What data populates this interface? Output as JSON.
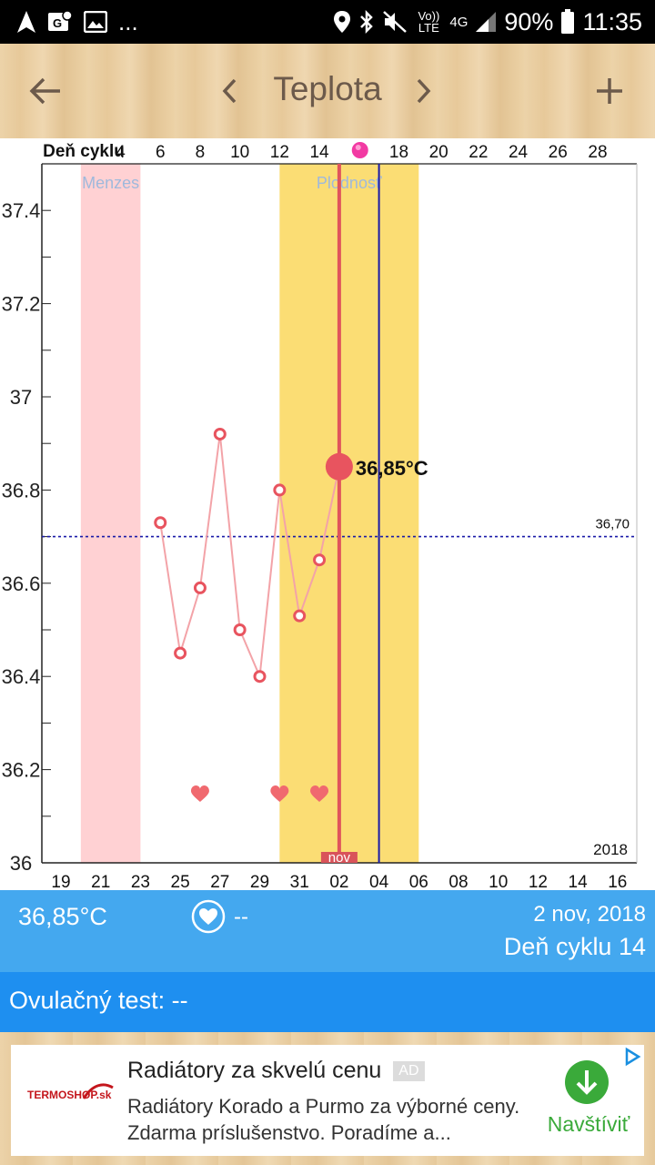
{
  "status_bar": {
    "dots": "...",
    "volte": "Vo)) LTE",
    "network": "4G",
    "battery": "90%",
    "time": "11:35"
  },
  "app_bar": {
    "title": "Teplota",
    "back_icon": "arrow-left-icon",
    "prev_icon": "chevron-left-icon",
    "next_icon": "chevron-right-icon",
    "add_icon": "plus-icon"
  },
  "chart_data": {
    "type": "line",
    "x_axis_top_label": "Deň cyklu",
    "cycle_day_ticks": [
      "4",
      "6",
      "8",
      "10",
      "12",
      "14",
      "18",
      "20",
      "22",
      "24",
      "26",
      "28"
    ],
    "date_ticks": [
      "19",
      "21",
      "23",
      "25",
      "27",
      "29",
      "31",
      "02",
      "04",
      "06",
      "08",
      "10",
      "12",
      "14",
      "16"
    ],
    "y_ticks": [
      "37.4",
      "37.2",
      "37",
      "36.8",
      "36.6",
      "36.4",
      "36.2",
      "36"
    ],
    "ylim": [
      36.0,
      37.5
    ],
    "month_marker": "nov",
    "year_label": "2018",
    "cover_line_value": 36.7,
    "cover_line_label": "36,70",
    "bands": [
      {
        "label": "Menzes",
        "start_day": 1,
        "end_day": 4,
        "color": "#ffd1d3"
      },
      {
        "label": "Plodnosť",
        "start_day": 11,
        "end_day": 18,
        "color": "#fbdd74"
      }
    ],
    "selected_day": 14,
    "ovulation_day": 16,
    "series": [
      {
        "points": [
          {
            "day": 5,
            "temp": 36.73
          },
          {
            "day": 6,
            "temp": 36.45
          },
          {
            "day": 7,
            "temp": 36.59
          },
          {
            "day": 8,
            "temp": 36.92
          },
          {
            "day": 9,
            "temp": 36.5
          },
          {
            "day": 10,
            "temp": 36.4
          },
          {
            "day": 11,
            "temp": 36.8
          },
          {
            "day": 12,
            "temp": 36.53
          },
          {
            "day": 13,
            "temp": 36.65
          },
          {
            "day": 14,
            "temp": 36.85
          }
        ]
      }
    ],
    "selected_value_label": "36,85°C",
    "intercourse_days": [
      7,
      11,
      13
    ],
    "line_color": "#f3a3a8",
    "marker_color": "#e8545f",
    "cover_line_color": "#1a1aa8",
    "ovulation_line_color": "#1a1aa8"
  },
  "info": {
    "temperature": "36,85°C",
    "intercourse_value": "--",
    "date": "2 nov, 2018",
    "cycle_day": "Deň cyklu 14"
  },
  "ovulation": {
    "text": "Ovulačný test: --"
  },
  "ad": {
    "logo": "TERMOSHOP.sk",
    "title": "Radiátory za skvelú cenu",
    "badge": "AD",
    "body": "Radiátory Korado a Purmo za výborné ceny. Zdarma príslušenstvo. Poradíme a...",
    "cta": "Navštíviť",
    "accent": "#3aaa3a"
  }
}
